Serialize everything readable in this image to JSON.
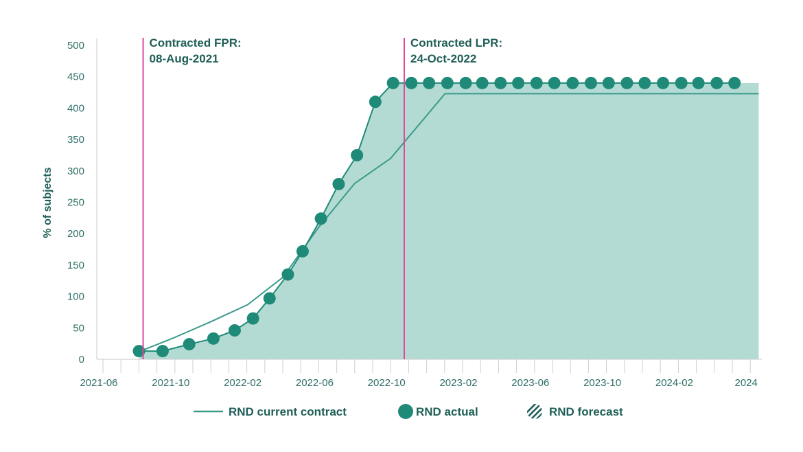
{
  "chart_data": {
    "type": "line",
    "ylabel": "% of subjects",
    "ylim": [
      0,
      500
    ],
    "y_ticks": [
      "0",
      "50",
      "100",
      "150",
      "200",
      "250",
      "300",
      "350",
      "400",
      "450",
      "500"
    ],
    "x_ticks": [
      "2021-06",
      "2021-10",
      "2022-02",
      "2022-06",
      "2022-10",
      "2023-02",
      "2023-06",
      "2023-10",
      "2024-02",
      "2024"
    ],
    "series": [
      {
        "name": "RND current contract",
        "style": "line",
        "color": "#3a9a8b",
        "points": [
          [
            "2021-08-01",
            12
          ],
          [
            "2021-10-01",
            35
          ],
          [
            "2021-12-01",
            60
          ],
          [
            "2022-02-01",
            87
          ],
          [
            "2022-04-01",
            130
          ],
          [
            "2022-06-01",
            210
          ],
          [
            "2022-08-01",
            280
          ],
          [
            "2022-10-01",
            320
          ],
          [
            "2023-01-01",
            423
          ],
          [
            "2024-06-15",
            423
          ]
        ]
      },
      {
        "name": "RND actual",
        "style": "markers",
        "color": "#1f8a78",
        "points": [
          [
            "2021-08-01",
            13
          ],
          [
            "2021-09-10",
            13
          ],
          [
            "2021-10-25",
            24
          ],
          [
            "2021-12-05",
            33
          ],
          [
            "2022-01-10",
            46
          ],
          [
            "2022-02-10",
            65
          ],
          [
            "2022-03-10",
            97
          ],
          [
            "2022-04-10",
            135
          ],
          [
            "2022-05-05",
            172
          ],
          [
            "2022-06-05",
            224
          ],
          [
            "2022-07-05",
            279
          ],
          [
            "2022-08-05",
            325
          ],
          [
            "2022-09-05",
            410
          ],
          [
            "2022-10-05",
            440
          ],
          [
            "2022-11-05",
            440
          ],
          [
            "2022-12-05",
            440
          ],
          [
            "2023-01-05",
            440
          ],
          [
            "2023-02-05",
            440
          ],
          [
            "2023-03-05",
            440
          ],
          [
            "2023-04-05",
            440
          ],
          [
            "2023-05-05",
            440
          ],
          [
            "2023-06-05",
            440
          ],
          [
            "2023-07-05",
            440
          ],
          [
            "2023-08-05",
            440
          ],
          [
            "2023-09-05",
            440
          ],
          [
            "2023-10-05",
            440
          ],
          [
            "2023-11-05",
            440
          ],
          [
            "2023-12-05",
            440
          ],
          [
            "2024-01-05",
            440
          ],
          [
            "2024-02-05",
            440
          ],
          [
            "2024-03-05",
            440
          ],
          [
            "2024-04-05",
            440
          ],
          [
            "2024-05-05",
            440
          ]
        ]
      },
      {
        "name": "RND forecast",
        "style": "area",
        "color": "#b3dbd3",
        "points": [
          [
            "2021-08-01",
            13
          ],
          [
            "2021-09-10",
            13
          ],
          [
            "2021-10-25",
            24
          ],
          [
            "2021-12-05",
            33
          ],
          [
            "2022-01-10",
            46
          ],
          [
            "2022-02-10",
            65
          ],
          [
            "2022-03-10",
            97
          ],
          [
            "2022-04-10",
            135
          ],
          [
            "2022-05-05",
            172
          ],
          [
            "2022-06-05",
            224
          ],
          [
            "2022-07-05",
            279
          ],
          [
            "2022-08-05",
            325
          ],
          [
            "2022-09-05",
            410
          ],
          [
            "2022-10-05",
            440
          ],
          [
            "2024-06-15",
            440
          ]
        ]
      }
    ],
    "annotations": [
      {
        "date": "2021-08-08",
        "label_line1": "Contracted FPR:",
        "label_line2": "08-Aug-2021",
        "color": "#e0479a"
      },
      {
        "date": "2022-10-24",
        "label_line1": "Contracted LPR:",
        "label_line2": "24-Oct-2022",
        "color": "#e0479a"
      }
    ],
    "legend": {
      "placement": "bottom",
      "items": [
        "RND current contract",
        "RND actual",
        "RND forecast"
      ]
    },
    "grid": false
  }
}
